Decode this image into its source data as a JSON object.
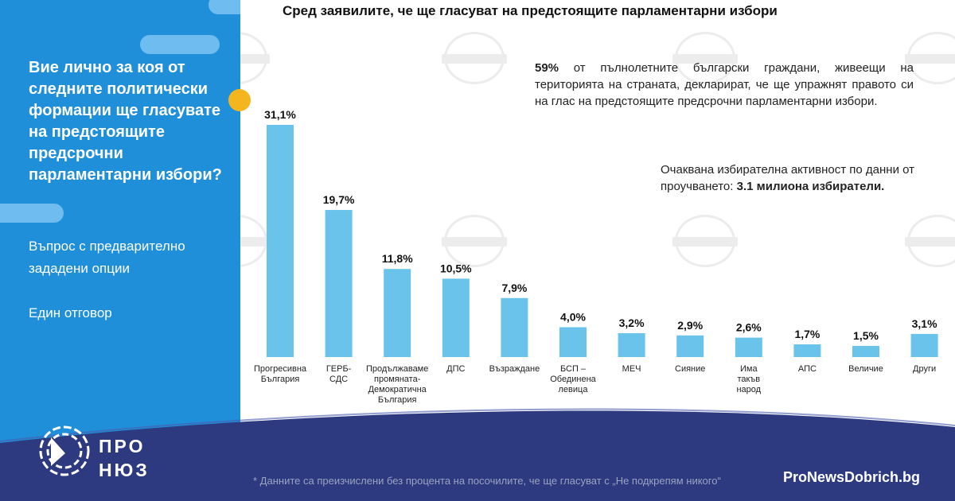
{
  "left_panel": {
    "question": "Вие лично за коя от следните политически формации ще гласувате на предстоящите предсрочни парламентарни избори?",
    "question_type": "Въпрос с предварително зададени опции",
    "answer_type": "Един отговор"
  },
  "header": {
    "title": "Сред заявилите, че ще гласуват на предстоящите парламентарни избори"
  },
  "info": {
    "pct": "59%",
    "text": "от пълнолетните български граждани, живеещи на територията на страната, декларират, че ще упражнят правото си на глас на предстоящите предсрочни парламентарни избори.",
    "turnout_text": "Очаквана избирателна активност по данни от проучването:",
    "turnout_value": "3.1 милиона избиратели."
  },
  "footer": {
    "footnote": "* Данните са преизчислени без процента на посочилите, че ще гласуват с „Не подкрепям никого“",
    "site": "ProNewsDobrich.bg",
    "logo_line1": "ПРО",
    "logo_line2": "НЮЗ"
  },
  "colors": {
    "panel": "#1e8fd8",
    "bar": "#69c3ea",
    "accent": "#f5b51f",
    "footer": "#2d3a80"
  },
  "chart_data": {
    "type": "bar",
    "title": "Сред заявилите, че ще гласуват на предстоящите парламентарни избори",
    "ylabel": "",
    "xlabel": "",
    "ylim": [
      0,
      31.1
    ],
    "categories": [
      [
        "Прогресивна",
        "България"
      ],
      [
        "ГЕРБ-",
        "СДС"
      ],
      [
        "Продължаваме",
        "промяната-",
        "Демократична",
        "България"
      ],
      [
        "ДПС"
      ],
      [
        "Възраждане"
      ],
      [
        "БСП –",
        "Обединена",
        "левица"
      ],
      [
        "МЕЧ"
      ],
      [
        "Сияние"
      ],
      [
        "Има",
        "такъв",
        "народ"
      ],
      [
        "АПС"
      ],
      [
        "Величие"
      ],
      [
        "Други"
      ]
    ],
    "values": [
      31.1,
      19.7,
      11.8,
      10.5,
      7.9,
      4.0,
      3.2,
      2.9,
      2.6,
      1.7,
      1.5,
      3.1
    ],
    "value_labels": [
      "31,1%",
      "19,7%",
      "11,8%",
      "10,5%",
      "7,9%",
      "4,0%",
      "3,2%",
      "2,9%",
      "2,6%",
      "1,7%",
      "1,5%",
      "3,1%"
    ]
  }
}
